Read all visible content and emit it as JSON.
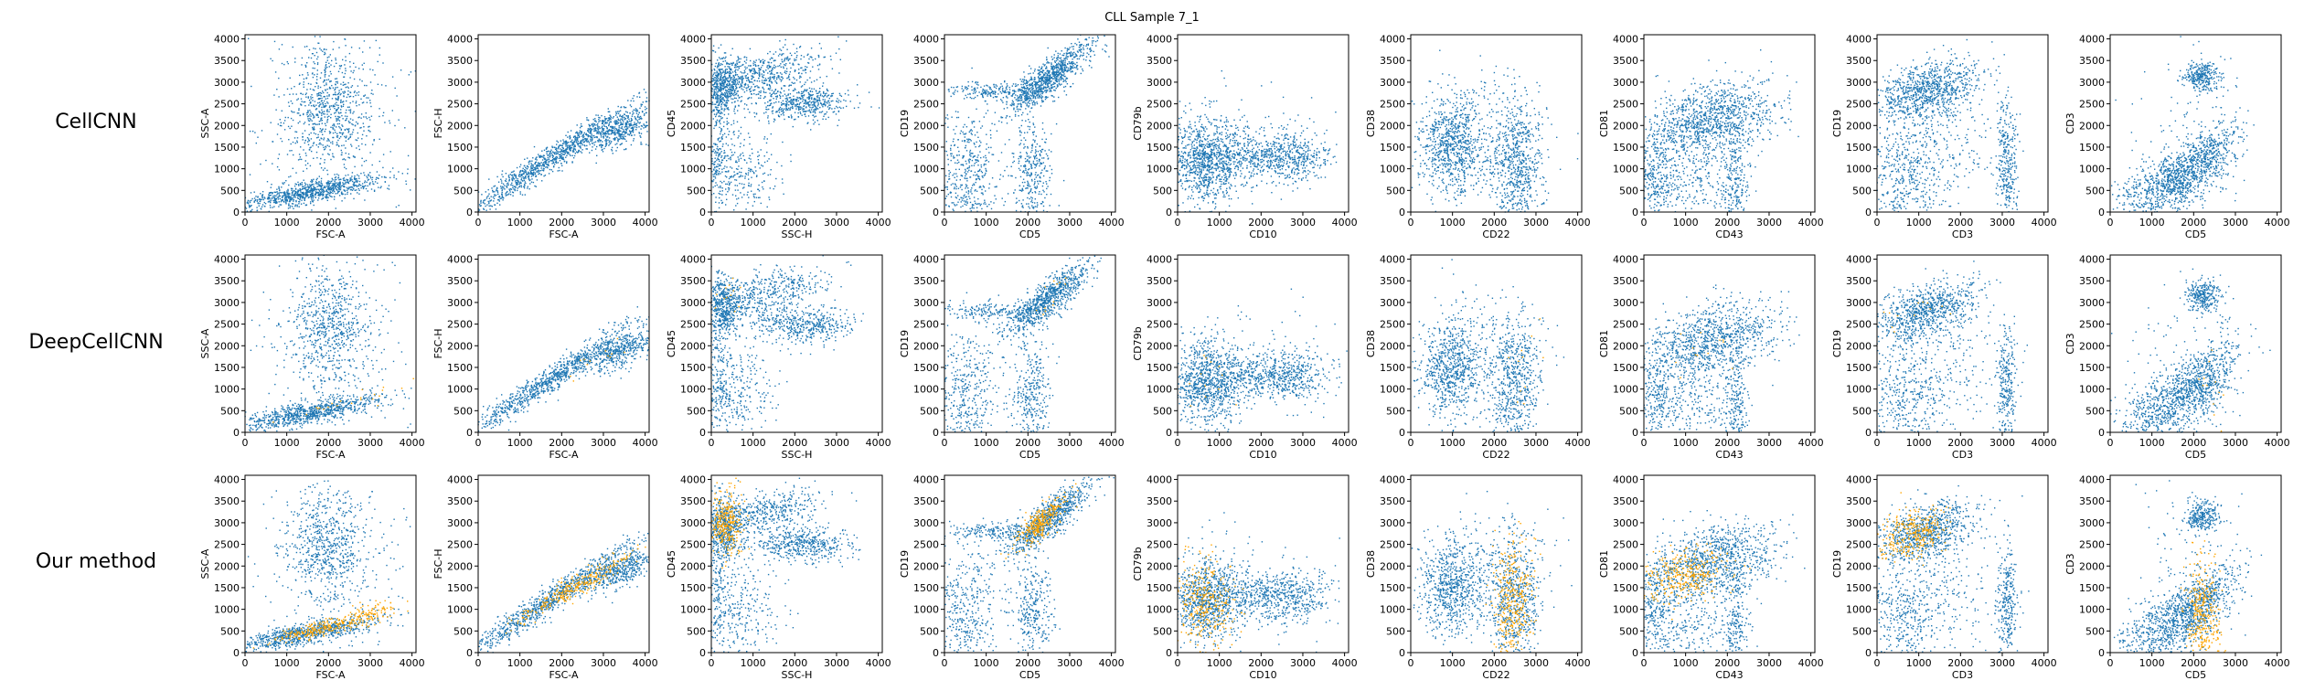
{
  "figure": {
    "title": "CLL Sample 7_1",
    "row_labels": [
      "CellCNN",
      "DeepCellCNN",
      "Our method"
    ]
  },
  "colors": {
    "population": "#1f77b4",
    "highlighted": "#ffa500"
  },
  "chart_data": {
    "type": "scatter",
    "title": "CLL Sample 7_1",
    "grid": false,
    "xlim": [
      0,
      4096
    ],
    "ylim": [
      0,
      4096
    ],
    "x_ticks": [
      "0",
      "1000",
      "2000",
      "3000",
      "4000"
    ],
    "y_ticks": [
      "0",
      "500",
      "1000",
      "1500",
      "2000",
      "2500",
      "3000",
      "3500",
      "4000"
    ],
    "rows": [
      "CellCNN",
      "DeepCellCNN",
      "Our method"
    ],
    "panels": [
      {
        "xlabel": "FSC-A",
        "ylabel": "SSC-A",
        "clusters": [
          {
            "cx": 2000,
            "cy": 2400,
            "sx": 500,
            "sy": 700,
            "n": 700
          },
          {
            "cx": 1500,
            "cy": 450,
            "sx": 900,
            "sy": 200,
            "corr": 0.8,
            "n": 900
          },
          {
            "cx": 2000,
            "cy": 2000,
            "sx": 1300,
            "sy": 1300,
            "n": 250
          }
        ],
        "highlight": [
          {
            "cx": 1800,
            "cy": 550,
            "sx": 500,
            "sy": 150,
            "corr": 0.8,
            "n": 220
          },
          {
            "cx": 3000,
            "cy": 900,
            "sx": 400,
            "sy": 180,
            "corr": 0.7,
            "n": 120
          }
        ]
      },
      {
        "xlabel": "FSC-A",
        "ylabel": "FSC-H",
        "clusters": [
          {
            "cx": 1700,
            "cy": 1200,
            "sx": 1000,
            "sy": 650,
            "corr": 0.97,
            "n": 1000
          },
          {
            "cx": 3400,
            "cy": 1900,
            "sx": 400,
            "sy": 250,
            "corr": 0.6,
            "n": 450
          }
        ],
        "highlight": [
          {
            "cx": 2300,
            "cy": 1500,
            "sx": 700,
            "sy": 400,
            "corr": 0.95,
            "n": 300
          }
        ]
      },
      {
        "xlabel": "SSC-H",
        "ylabel": "CD45",
        "clusters": [
          {
            "cx": 300,
            "cy": 2900,
            "sx": 200,
            "sy": 350,
            "n": 500
          },
          {
            "cx": 1300,
            "cy": 3200,
            "sx": 700,
            "sy": 300,
            "corr": 0.5,
            "n": 500
          },
          {
            "cx": 2200,
            "cy": 2500,
            "sx": 600,
            "sy": 200,
            "n": 500
          },
          {
            "cx": 600,
            "cy": 900,
            "sx": 500,
            "sy": 500,
            "n": 300
          },
          {
            "cx": 150,
            "cy": 1500,
            "sx": 150,
            "sy": 800,
            "n": 200
          }
        ],
        "highlight": [
          {
            "cx": 350,
            "cy": 3000,
            "sx": 200,
            "sy": 350,
            "n": 320
          }
        ]
      },
      {
        "xlabel": "CD5",
        "ylabel": "CD19",
        "clusters": [
          {
            "cx": 2500,
            "cy": 3100,
            "sx": 500,
            "sy": 400,
            "corr": 0.85,
            "n": 900
          },
          {
            "cx": 500,
            "cy": 800,
            "sx": 400,
            "sy": 800,
            "n": 500
          },
          {
            "cx": 2100,
            "cy": 900,
            "sx": 250,
            "sy": 650,
            "n": 350
          },
          {
            "cx": 1200,
            "cy": 2800,
            "sx": 600,
            "sy": 100,
            "n": 200
          }
        ],
        "highlight": [
          {
            "cx": 2300,
            "cy": 3000,
            "sx": 300,
            "sy": 300,
            "corr": 0.8,
            "n": 300
          }
        ]
      },
      {
        "xlabel": "CD10",
        "ylabel": "CD79b",
        "clusters": [
          {
            "cx": 700,
            "cy": 1200,
            "sx": 450,
            "sy": 500,
            "n": 1000
          },
          {
            "cx": 2700,
            "cy": 1300,
            "sx": 450,
            "sy": 300,
            "n": 400
          },
          {
            "cx": 1800,
            "cy": 1300,
            "sx": 500,
            "sy": 250,
            "n": 250
          },
          {
            "cx": 1700,
            "cy": 1500,
            "sx": 1100,
            "sy": 800,
            "n": 120
          }
        ],
        "highlight": [
          {
            "cx": 650,
            "cy": 1100,
            "sx": 350,
            "sy": 500,
            "n": 320
          }
        ]
      },
      {
        "xlabel": "CD22",
        "ylabel": "CD38",
        "clusters": [
          {
            "cx": 1000,
            "cy": 1500,
            "sx": 400,
            "sy": 550,
            "n": 800
          },
          {
            "cx": 2500,
            "cy": 1100,
            "sx": 300,
            "sy": 750,
            "n": 700
          },
          {
            "cx": 1800,
            "cy": 2200,
            "sx": 900,
            "sy": 700,
            "n": 150
          }
        ],
        "highlight": [
          {
            "cx": 2450,
            "cy": 1200,
            "sx": 250,
            "sy": 750,
            "n": 350
          }
        ]
      },
      {
        "xlabel": "CD43",
        "ylabel": "CD81",
        "clusters": [
          {
            "cx": 1600,
            "cy": 2100,
            "sx": 800,
            "sy": 450,
            "corr": 0.35,
            "n": 1100
          },
          {
            "cx": 300,
            "cy": 900,
            "sx": 250,
            "sy": 600,
            "n": 300
          },
          {
            "cx": 2200,
            "cy": 700,
            "sx": 150,
            "sy": 700,
            "n": 250
          },
          {
            "cx": 1200,
            "cy": 600,
            "sx": 500,
            "sy": 400,
            "n": 200
          }
        ],
        "highlight": [
          {
            "cx": 1000,
            "cy": 1800,
            "sx": 500,
            "sy": 300,
            "corr": 0.3,
            "n": 330
          }
        ]
      },
      {
        "xlabel": "CD3",
        "ylabel": "CD19",
        "clusters": [
          {
            "cx": 1200,
            "cy": 2800,
            "sx": 600,
            "sy": 350,
            "corr": 0.4,
            "n": 900
          },
          {
            "cx": 700,
            "cy": 800,
            "sx": 500,
            "sy": 700,
            "n": 500
          },
          {
            "cx": 3100,
            "cy": 1100,
            "sx": 120,
            "sy": 700,
            "n": 300
          },
          {
            "cx": 2000,
            "cy": 1500,
            "sx": 600,
            "sy": 700,
            "n": 150
          }
        ],
        "highlight": [
          {
            "cx": 800,
            "cy": 2700,
            "sx": 450,
            "sy": 300,
            "corr": 0.3,
            "n": 320
          }
        ]
      },
      {
        "xlabel": "CD5",
        "ylabel": "CD3",
        "clusters": [
          {
            "cx": 2200,
            "cy": 3150,
            "sx": 200,
            "sy": 180,
            "n": 300
          },
          {
            "cx": 1500,
            "cy": 700,
            "sx": 600,
            "sy": 450,
            "corr": 0.5,
            "n": 900
          },
          {
            "cx": 2300,
            "cy": 1300,
            "sx": 400,
            "sy": 400,
            "corr": 0.6,
            "n": 400
          },
          {
            "cx": 2000,
            "cy": 2000,
            "sx": 800,
            "sy": 800,
            "n": 100
          }
        ],
        "highlight": [
          {
            "cx": 2200,
            "cy": 900,
            "sx": 200,
            "sy": 600,
            "n": 330
          }
        ]
      }
    ],
    "highlight_by_row": [
      0,
      0,
      1
    ]
  }
}
